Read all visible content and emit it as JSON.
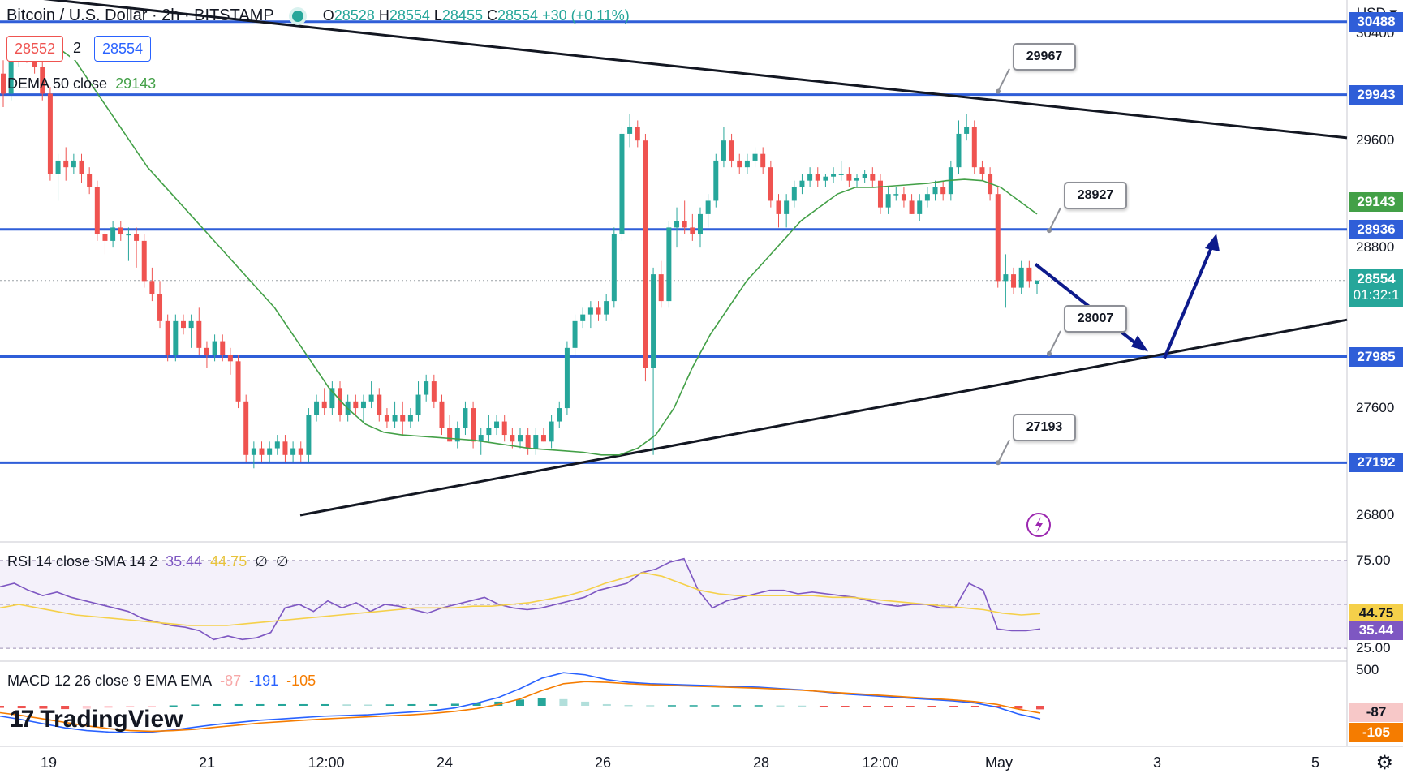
{
  "header": {
    "symbol": "Bitcoin / U.S. Dollar · 2h · BITSTAMP",
    "open_label": "O",
    "open": "28528",
    "high_label": "H",
    "high": "28554",
    "low_label": "L",
    "low": "28455",
    "close_label": "C",
    "close": "28554",
    "change": "+30 (+0.11%)",
    "bid": "28552",
    "spread": "2",
    "ask": "28554",
    "currency": "USD"
  },
  "indicators": {
    "dema": {
      "label": "DEMA 50 close",
      "value": "29143",
      "color": "#43a047"
    },
    "rsi": {
      "label": "RSI 14 close SMA 14 2",
      "value": "35.44",
      "sma": "44.75",
      "extra1": "∅",
      "extra2": "∅"
    },
    "macd": {
      "label": "MACD 12 26 close 9 EMA EMA",
      "hist": "-87",
      "macd": "-191",
      "signal": "-105"
    }
  },
  "colors": {
    "up": "#26a69a",
    "down": "#ef5350",
    "hline": "#2f5ed8",
    "trend": "#131722",
    "arrow": "#0d1a8c",
    "dema": "#43a047",
    "rsi": "#7e57c2",
    "rsi_sma": "#f5d04a",
    "macd": "#2962ff",
    "signal": "#f57c00"
  },
  "price_axis": {
    "ticks": [
      "30400",
      "29600",
      "28800",
      "27600",
      "26800"
    ],
    "tick_values": [
      30400,
      29600,
      28800,
      27600,
      26800
    ],
    "min": 26600,
    "max": 30650
  },
  "price_tags": [
    {
      "label": "30488",
      "value": 30488,
      "color": "#2f5ed8"
    },
    {
      "label": "29943",
      "value": 29943,
      "color": "#2f5ed8"
    },
    {
      "label": "29143",
      "value": 29143,
      "color": "#43a047"
    },
    {
      "label": "28936",
      "value": 28936,
      "color": "#2f5ed8"
    },
    {
      "label": "28554",
      "value": 28554,
      "color": "#26a69a"
    },
    {
      "label": "27985",
      "value": 27985,
      "color": "#2f5ed8"
    },
    {
      "label": "27192",
      "value": 27192,
      "color": "#2f5ed8"
    }
  ],
  "countdown": "01:32:1",
  "callouts": [
    {
      "label": "29967",
      "value": 29967
    },
    {
      "label": "28927",
      "value": 28927
    },
    {
      "label": "28007",
      "value": 28007
    },
    {
      "label": "27193",
      "value": 27193
    }
  ],
  "rsi_axis": {
    "ticks": [
      "75.00",
      "25.00"
    ],
    "tags": [
      {
        "label": "44.75",
        "color": "#f5d04a",
        "text": "#131722"
      },
      {
        "label": "35.44",
        "color": "#7e57c2",
        "text": "#ffffff"
      }
    ]
  },
  "macd_axis": {
    "ticks": [
      "500"
    ],
    "tags": [
      {
        "label": "-87",
        "color": "#f7c8c8",
        "text": "#131722"
      },
      {
        "label": "-105",
        "color": "#f57c00",
        "text": "#ffffff"
      }
    ]
  },
  "x_axis": [
    "19",
    "21",
    "12:00",
    "24",
    "26",
    "28",
    "12:00",
    "May",
    "3",
    "5"
  ],
  "logo": "TradingView",
  "chart_data": {
    "type": "candlestick",
    "title": "Bitcoin / U.S. Dollar · 2h · BITSTAMP",
    "horizontal_levels": [
      30488,
      29943,
      28936,
      27985,
      27192
    ],
    "trendlines": [
      {
        "name": "upper",
        "from": {
          "x": "18",
          "y": 30700
        },
        "to": {
          "x": "May 3",
          "y": 29620
        }
      },
      {
        "name": "lower",
        "from": {
          "x": "21",
          "y": 26800
        },
        "to": {
          "x": "May 3",
          "y": 28260
        }
      }
    ],
    "projection": {
      "down_to": 28010,
      "then_up_to": 28880
    },
    "candles_ohlc": [
      [
        30100,
        30200,
        29850,
        29950
      ],
      [
        29950,
        30300,
        29900,
        30250
      ],
      [
        30250,
        30350,
        30150,
        30300
      ],
      [
        30300,
        30380,
        30180,
        30200
      ],
      [
        30200,
        30280,
        30100,
        30150
      ],
      [
        30150,
        30200,
        29900,
        29950
      ],
      [
        29950,
        30000,
        29300,
        29350
      ],
      [
        29350,
        29500,
        29150,
        29450
      ],
      [
        29450,
        29550,
        29300,
        29400
      ],
      [
        29400,
        29500,
        29350,
        29450
      ],
      [
        29450,
        29500,
        29280,
        29350
      ],
      [
        29350,
        29400,
        29200,
        29250
      ],
      [
        29250,
        29300,
        28850,
        28900
      ],
      [
        28900,
        28950,
        28750,
        28850
      ],
      [
        28850,
        29000,
        28800,
        28950
      ],
      [
        28950,
        29000,
        28850,
        28900
      ],
      [
        28900,
        28950,
        28700,
        28900
      ],
      [
        28900,
        28950,
        28650,
        28850
      ],
      [
        28850,
        28900,
        28500,
        28550
      ],
      [
        28550,
        28650,
        28400,
        28450
      ],
      [
        28450,
        28550,
        28200,
        28250
      ],
      [
        28250,
        28300,
        27950,
        28000
      ],
      [
        28000,
        28300,
        27950,
        28250
      ],
      [
        28250,
        28300,
        28150,
        28200
      ],
      [
        28200,
        28300,
        28050,
        28250
      ],
      [
        28250,
        28350,
        28000,
        28050
      ],
      [
        28050,
        28100,
        27900,
        28000
      ],
      [
        28000,
        28150,
        27950,
        28100
      ],
      [
        28100,
        28150,
        27950,
        28000
      ],
      [
        28000,
        28050,
        27850,
        27950
      ],
      [
        27950,
        28000,
        27600,
        27650
      ],
      [
        27650,
        27700,
        27200,
        27250
      ],
      [
        27250,
        27350,
        27150,
        27300
      ],
      [
        27300,
        27350,
        27200,
        27250
      ],
      [
        27250,
        27350,
        27200,
        27300
      ],
      [
        27300,
        27400,
        27250,
        27350
      ],
      [
        27350,
        27400,
        27200,
        27250
      ],
      [
        27250,
        27350,
        27200,
        27300
      ],
      [
        27300,
        27350,
        27200,
        27250
      ],
      [
        27250,
        27600,
        27200,
        27550
      ],
      [
        27550,
        27700,
        27500,
        27650
      ],
      [
        27650,
        27750,
        27550,
        27600
      ],
      [
        27600,
        27800,
        27550,
        27750
      ],
      [
        27750,
        27800,
        27500,
        27550
      ],
      [
        27550,
        27700,
        27500,
        27650
      ],
      [
        27650,
        27700,
        27550,
        27600
      ],
      [
        27600,
        27700,
        27500,
        27650
      ],
      [
        27650,
        27800,
        27600,
        27700
      ],
      [
        27700,
        27750,
        27500,
        27550
      ],
      [
        27550,
        27600,
        27450,
        27500
      ],
      [
        27500,
        27650,
        27450,
        27550
      ],
      [
        27550,
        27650,
        27400,
        27500
      ],
      [
        27500,
        27600,
        27450,
        27550
      ],
      [
        27550,
        27800,
        27500,
        27700
      ],
      [
        27700,
        27850,
        27650,
        27800
      ],
      [
        27800,
        27850,
        27600,
        27650
      ],
      [
        27650,
        27700,
        27400,
        27450
      ],
      [
        27450,
        27550,
        27350,
        27350
      ],
      [
        27350,
        27500,
        27300,
        27450
      ],
      [
        27450,
        27650,
        27400,
        27600
      ],
      [
        27600,
        27650,
        27300,
        27350
      ],
      [
        27350,
        27450,
        27250,
        27400
      ],
      [
        27400,
        27550,
        27350,
        27450
      ],
      [
        27450,
        27550,
        27400,
        27500
      ],
      [
        27500,
        27550,
        27350,
        27400
      ],
      [
        27400,
        27450,
        27300,
        27350
      ],
      [
        27350,
        27450,
        27300,
        27400
      ],
      [
        27400,
        27450,
        27250,
        27300
      ],
      [
        27300,
        27450,
        27250,
        27400
      ],
      [
        27400,
        27450,
        27350,
        27350
      ],
      [
        27350,
        27550,
        27300,
        27500
      ],
      [
        27500,
        27650,
        27450,
        27600
      ],
      [
        27600,
        28100,
        27550,
        28050
      ],
      [
        28050,
        28300,
        28000,
        28250
      ],
      [
        28250,
        28350,
        28200,
        28300
      ],
      [
        28300,
        28400,
        28200,
        28350
      ],
      [
        28350,
        28400,
        28250,
        28300
      ],
      [
        28300,
        28450,
        28250,
        28400
      ],
      [
        28400,
        28950,
        28350,
        28900
      ],
      [
        28900,
        29700,
        28850,
        29650
      ],
      [
        29650,
        29800,
        29550,
        29700
      ],
      [
        29700,
        29750,
        29550,
        29600
      ],
      [
        29600,
        29650,
        27800,
        27900
      ],
      [
        27900,
        28650,
        27250,
        28600
      ],
      [
        28600,
        28700,
        28350,
        28400
      ],
      [
        28400,
        29000,
        28350,
        28950
      ],
      [
        28950,
        29100,
        28800,
        29000
      ],
      [
        29000,
        29150,
        28900,
        28950
      ],
      [
        28950,
        29050,
        28850,
        28900
      ],
      [
        28900,
        29100,
        28800,
        29050
      ],
      [
        29050,
        29200,
        28950,
        29150
      ],
      [
        29150,
        29500,
        29100,
        29450
      ],
      [
        29450,
        29700,
        29400,
        29600
      ],
      [
        29600,
        29650,
        29400,
        29450
      ],
      [
        29450,
        29500,
        29350,
        29400
      ],
      [
        29400,
        29500,
        29350,
        29450
      ],
      [
        29450,
        29550,
        29400,
        29500
      ],
      [
        29500,
        29550,
        29350,
        29400
      ],
      [
        29400,
        29450,
        29100,
        29150
      ],
      [
        29150,
        29200,
        28950,
        29050
      ],
      [
        29050,
        29200,
        28950,
        29150
      ],
      [
        29150,
        29300,
        29100,
        29250
      ],
      [
        29250,
        29350,
        29200,
        29300
      ],
      [
        29300,
        29400,
        29250,
        29350
      ],
      [
        29350,
        29400,
        29250,
        29300
      ],
      [
        29300,
        29350,
        29250,
        29330
      ],
      [
        29330,
        29400,
        29280,
        29350
      ],
      [
        29350,
        29450,
        29300,
        29350
      ],
      [
        29350,
        29400,
        29250,
        29300
      ],
      [
        29300,
        29350,
        29250,
        29320
      ],
      [
        29320,
        29380,
        29280,
        29350
      ],
      [
        29350,
        29400,
        29250,
        29300
      ],
      [
        29300,
        29350,
        29050,
        29100
      ],
      [
        29100,
        29250,
        29050,
        29200
      ],
      [
        29200,
        29250,
        29150,
        29200
      ],
      [
        29200,
        29250,
        29100,
        29150
      ],
      [
        29150,
        29200,
        29050,
        29050
      ],
      [
        29050,
        29200,
        29000,
        29150
      ],
      [
        29150,
        29250,
        29100,
        29200
      ],
      [
        29200,
        29300,
        29150,
        29250
      ],
      [
        29250,
        29300,
        29150,
        29200
      ],
      [
        29200,
        29450,
        29150,
        29400
      ],
      [
        29400,
        29750,
        29350,
        29650
      ],
      [
        29650,
        29800,
        29600,
        29700
      ],
      [
        29700,
        29750,
        29350,
        29400
      ],
      [
        29400,
        29450,
        29300,
        29350
      ],
      [
        29350,
        29400,
        29150,
        29200
      ],
      [
        29200,
        29250,
        28500,
        28550
      ],
      [
        28550,
        28750,
        28350,
        28600
      ],
      [
        28600,
        28650,
        28450,
        28500
      ],
      [
        28500,
        28700,
        28450,
        28650
      ],
      [
        28650,
        28700,
        28500,
        28550
      ],
      [
        28528,
        28554,
        28455,
        28554
      ]
    ],
    "dema_values": [
      30300,
      30200,
      30000,
      29800,
      29600,
      29400,
      29250,
      29100,
      28950,
      28800,
      28650,
      28500,
      28350,
      28150,
      27950,
      27750,
      27600,
      27480,
      27420,
      27400,
      27390,
      27380,
      27370,
      27360,
      27340,
      27320,
      27300,
      27290,
      27280,
      27270,
      27250,
      27250,
      27300,
      27400,
      27600,
      27900,
      28150,
      28350,
      28550,
      28700,
      28850,
      29000,
      29100,
      29200,
      29250,
      29250,
      29260,
      29270,
      29280,
      29300,
      29310,
      29300,
      29250,
      29150,
      29050
    ],
    "rsi_values": [
      60,
      62,
      58,
      55,
      57,
      54,
      52,
      50,
      48,
      46,
      42,
      40,
      38,
      37,
      35,
      30,
      32,
      30,
      31,
      34,
      48,
      50,
      46,
      52,
      48,
      51,
      46,
      50,
      49,
      47,
      45,
      48,
      50,
      52,
      54,
      50,
      48,
      47,
      48,
      50,
      52,
      54,
      58,
      60,
      62,
      68,
      70,
      74,
      76,
      58,
      48,
      52,
      54,
      56,
      58,
      58,
      56,
      57,
      56,
      55,
      54,
      52,
      50,
      49,
      50,
      50,
      48,
      48,
      62,
      58,
      36,
      35,
      35,
      36
    ],
    "rsi_sma": [
      48,
      50,
      48,
      46,
      44,
      43,
      42,
      41,
      40,
      39,
      38,
      38,
      38,
      39,
      40,
      41,
      42,
      43,
      44,
      45,
      46,
      47,
      48,
      48,
      48,
      49,
      49,
      50,
      51,
      53,
      55,
      58,
      62,
      65,
      68,
      66,
      62,
      58,
      56,
      55,
      55,
      55,
      55,
      55,
      54,
      54,
      53,
      52,
      51,
      50,
      49,
      48,
      47,
      45,
      44,
      44.75
    ],
    "macd_values": [
      -150,
      -200,
      -260,
      -320,
      -360,
      -380,
      -390,
      -380,
      -350,
      -310,
      -270,
      -240,
      -210,
      -190,
      -170,
      -150,
      -140,
      -130,
      -110,
      -90,
      -70,
      -30,
      40,
      120,
      250,
      400,
      480,
      450,
      380,
      340,
      320,
      310,
      300,
      290,
      280,
      270,
      250,
      230,
      200,
      170,
      150,
      130,
      110,
      90,
      70,
      40,
      -20,
      -120,
      -191
    ],
    "signal_values": [
      -100,
      -140,
      -190,
      -240,
      -290,
      -330,
      -360,
      -370,
      -360,
      -340,
      -310,
      -280,
      -250,
      -230,
      -210,
      -190,
      -175,
      -160,
      -145,
      -130,
      -110,
      -80,
      -40,
      20,
      100,
      220,
      320,
      350,
      340,
      320,
      305,
      295,
      285,
      275,
      265,
      255,
      240,
      225,
      205,
      185,
      165,
      145,
      125,
      105,
      85,
      60,
      20,
      -50,
      -105
    ],
    "y_range": [
      26600,
      30650
    ]
  }
}
